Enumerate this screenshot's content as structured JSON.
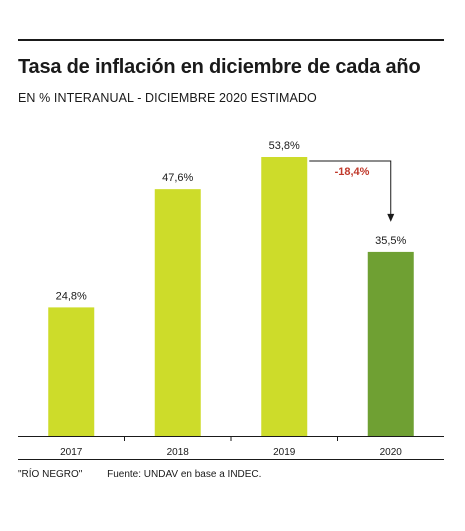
{
  "header": {
    "title": "Tasa de inflación en diciembre de cada año",
    "subtitle": "EN % INTERANUAL - DICIEMBRE 2020 ESTIMADO"
  },
  "chart_data": {
    "type": "bar",
    "categories": [
      "2017",
      "2018",
      "2019",
      "2020"
    ],
    "values": [
      24.8,
      47.6,
      53.8,
      35.5
    ],
    "value_labels": [
      "24,8%",
      "47,6%",
      "53,8%",
      "35,5%"
    ],
    "ylim": [
      0,
      60
    ],
    "grid": false,
    "colors": [
      "#cddc2a",
      "#cddc2a",
      "#cddc2a",
      "#6fa033"
    ],
    "annotation": {
      "text": "-18,4%",
      "from": "2019",
      "to": "2020",
      "color": "#c0392b"
    }
  },
  "footer": {
    "credit": "\"RÍO NEGRO\"",
    "source": "Fuente: UNDAV en base a INDEC."
  }
}
